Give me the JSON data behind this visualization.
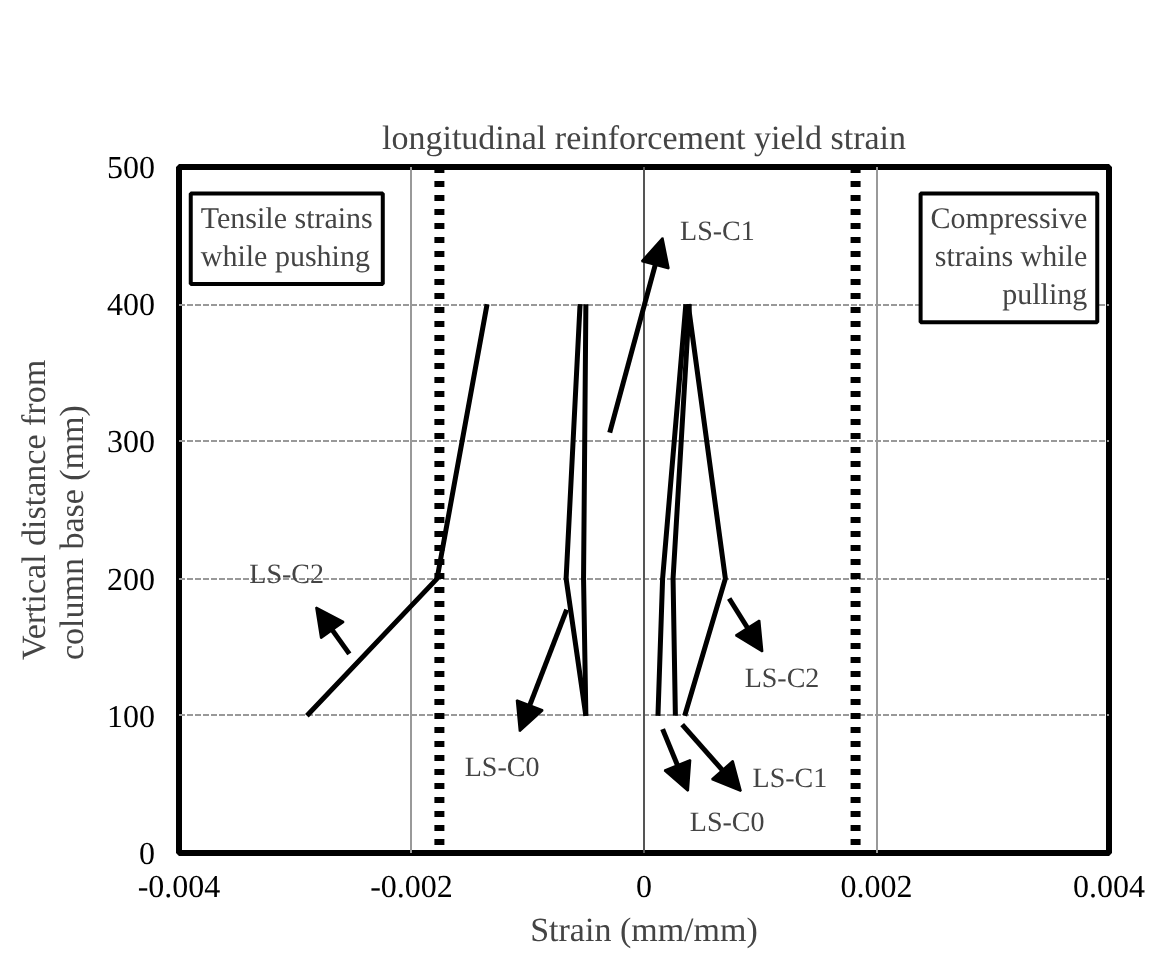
{
  "chart_data": {
    "type": "line",
    "title": "longitudinal reinforcement yield strain",
    "xlabel": "Strain (mm/mm)",
    "ylabel": "Vertical distance from column base (mm)",
    "xlim": [
      -0.004,
      0.004
    ],
    "ylim": [
      0,
      500
    ],
    "xticks": [
      -0.004,
      -0.002,
      0,
      0.002,
      0.004
    ],
    "yticks": [
      0,
      100,
      200,
      300,
      400,
      500
    ],
    "grid": true,
    "marker": "none",
    "line_style": "solid",
    "series": [
      {
        "color": "#000000",
        "x": [
          -0.0029,
          -0.00178,
          -0.00135
        ],
        "values": [
          100,
          200,
          400
        ]
      },
      {
        "color": "#000000",
        "x": [
          -0.0005,
          -0.00067,
          -0.00055
        ],
        "values": [
          100,
          200,
          400
        ]
      },
      {
        "color": "#000000",
        "x": [
          -0.0005,
          -0.00052,
          -0.0005
        ],
        "values": [
          100,
          200,
          400
        ]
      },
      {
        "color": "#000000",
        "x": [
          0.00012,
          0.00016,
          0.00036
        ],
        "values": [
          100,
          200,
          400
        ]
      },
      {
        "color": "#000000",
        "x": [
          0.00027,
          0.00025,
          0.00039
        ],
        "values": [
          100,
          200,
          400
        ]
      },
      {
        "color": "#000000",
        "x": [
          0.00035,
          0.0007,
          0.00038
        ],
        "values": [
          100,
          200,
          400
        ]
      }
    ],
    "ref_lines": [
      {
        "axis": "x",
        "value": -0.00176,
        "label": null,
        "color": "#000000",
        "line_style": "dotted"
      },
      {
        "axis": "x",
        "value": 0.00182,
        "label": null,
        "color": "#000000",
        "line_style": "dotted"
      }
    ],
    "annotations": [
      "LS-C2",
      "LS-C0",
      "LS-C1",
      "LS-C2",
      "LS-C1",
      "LS-C0",
      "Tensile strains while pushing",
      "Compressive strains while pulling"
    ]
  }
}
